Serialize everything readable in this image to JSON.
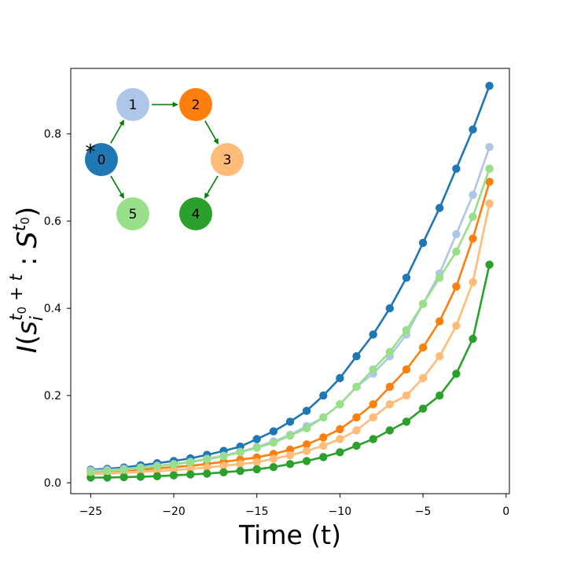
{
  "chart_data": {
    "type": "line",
    "xlabel": "Time (t)",
    "ylabel": "I(s_i^{t0+t} : S^{t0})",
    "ylabel_parts": {
      "I": "I",
      "open": "(",
      "s": "s",
      "i": "i",
      "t0t": "t",
      "zero": "0",
      "plus_t": " + t",
      "colon": " : ",
      "S": "S",
      "t": "t",
      "close": ")"
    },
    "xlim": [
      -26.2,
      0.2
    ],
    "ylim": [
      -0.025,
      0.95
    ],
    "xticks": [
      -25,
      -20,
      -15,
      -10,
      -5,
      0
    ],
    "xtick_labels": [
      "−25",
      "−20",
      "−15",
      "−10",
      "−5",
      "0"
    ],
    "yticks": [
      0.0,
      0.2,
      0.4,
      0.6,
      0.8
    ],
    "ytick_labels": [
      "0.0",
      "0.2",
      "0.4",
      "0.6",
      "0.8"
    ],
    "x": [
      -25,
      -24,
      -23,
      -22,
      -21,
      -20,
      -19,
      -18,
      -17,
      -16,
      -15,
      -14,
      -13,
      -12,
      -11,
      -10,
      -9,
      -8,
      -7,
      -6,
      -5,
      -4,
      -3,
      -2,
      -1
    ],
    "series": [
      {
        "name": "0",
        "color": "#1f77b4",
        "values": [
          0.03,
          0.032,
          0.035,
          0.04,
          0.045,
          0.05,
          0.056,
          0.064,
          0.073,
          0.083,
          0.1,
          0.118,
          0.14,
          0.165,
          0.2,
          0.24,
          0.29,
          0.34,
          0.4,
          0.47,
          0.55,
          0.63,
          0.72,
          0.81,
          0.91
        ]
      },
      {
        "name": "1",
        "color": "#aec7e8",
        "values": [
          0.028,
          0.029,
          0.032,
          0.035,
          0.039,
          0.043,
          0.048,
          0.055,
          0.062,
          0.071,
          0.082,
          0.095,
          0.11,
          0.13,
          0.15,
          0.18,
          0.22,
          0.25,
          0.29,
          0.34,
          0.41,
          0.48,
          0.57,
          0.66,
          0.77
        ]
      },
      {
        "name": "2",
        "color": "#ff7f0e",
        "values": [
          0.025,
          0.026,
          0.028,
          0.03,
          0.033,
          0.036,
          0.039,
          0.043,
          0.048,
          0.053,
          0.058,
          0.066,
          0.076,
          0.088,
          0.104,
          0.123,
          0.15,
          0.18,
          0.22,
          0.26,
          0.31,
          0.37,
          0.45,
          0.56,
          0.69
        ]
      },
      {
        "name": "3",
        "color": "#ffbb78",
        "values": [
          0.02,
          0.021,
          0.023,
          0.025,
          0.027,
          0.029,
          0.032,
          0.035,
          0.039,
          0.043,
          0.047,
          0.055,
          0.063,
          0.073,
          0.085,
          0.1,
          0.12,
          0.15,
          0.18,
          0.2,
          0.24,
          0.29,
          0.36,
          0.46,
          0.64
        ]
      },
      {
        "name": "4",
        "color": "#2ca02c",
        "values": [
          0.012,
          0.012,
          0.013,
          0.014,
          0.015,
          0.017,
          0.019,
          0.021,
          0.024,
          0.027,
          0.031,
          0.036,
          0.043,
          0.05,
          0.059,
          0.07,
          0.085,
          0.1,
          0.12,
          0.14,
          0.17,
          0.2,
          0.25,
          0.33,
          0.5
        ]
      },
      {
        "name": "5",
        "color": "#98df8a",
        "values": [
          0.025,
          0.027,
          0.03,
          0.034,
          0.038,
          0.042,
          0.047,
          0.054,
          0.061,
          0.07,
          0.08,
          0.092,
          0.108,
          0.125,
          0.15,
          0.18,
          0.22,
          0.26,
          0.3,
          0.35,
          0.41,
          0.47,
          0.53,
          0.61,
          0.72
        ]
      }
    ],
    "inset_network": {
      "nodes": [
        {
          "id": "0",
          "label": "0",
          "color": "#1f77b4",
          "marked": true,
          "marker": "*"
        },
        {
          "id": "1",
          "label": "1",
          "color": "#aec7e8"
        },
        {
          "id": "2",
          "label": "2",
          "color": "#ff7f0e"
        },
        {
          "id": "3",
          "label": "3",
          "color": "#ffbb78"
        },
        {
          "id": "4",
          "label": "4",
          "color": "#2ca02c"
        },
        {
          "id": "5",
          "label": "5",
          "color": "#98df8a"
        }
      ],
      "edges": [
        [
          "0",
          "1"
        ],
        [
          "1",
          "2"
        ],
        [
          "2",
          "3"
        ],
        [
          "3",
          "4"
        ],
        [
          "0",
          "5"
        ]
      ],
      "edge_color": "#007f00"
    }
  }
}
